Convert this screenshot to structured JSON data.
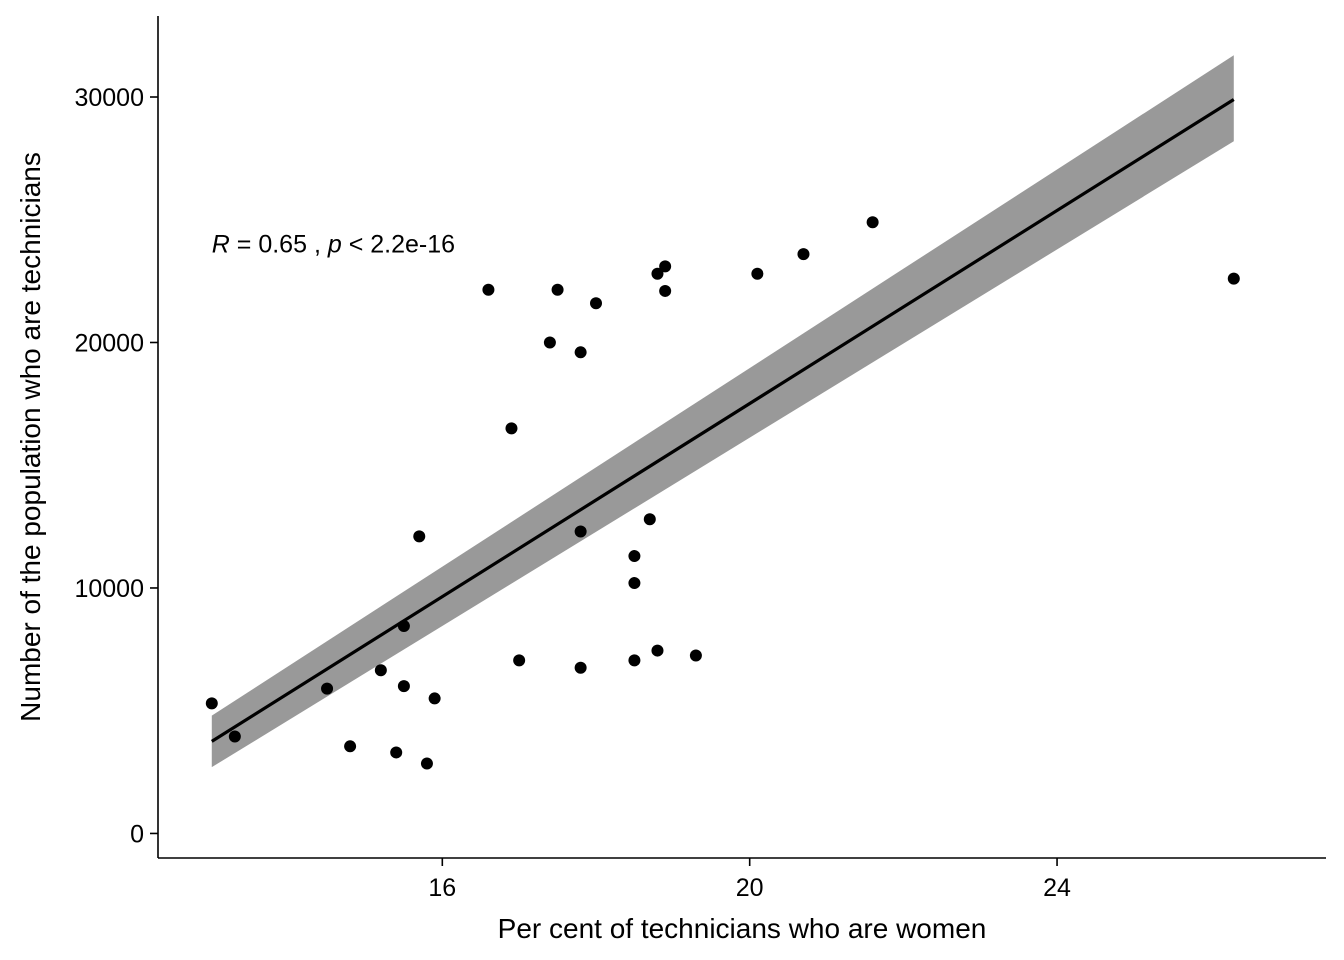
{
  "chart_data": {
    "type": "scatter",
    "title": "",
    "xlabel": "Per cent of technicians who are women",
    "ylabel": "Number of the population who are technicians",
    "xlim": [
      12.3,
      27.5
    ],
    "ylim": [
      -1000,
      33300
    ],
    "x_ticks": [
      16,
      20,
      24
    ],
    "y_ticks": [
      0,
      10000,
      20000,
      30000
    ],
    "x_tick_labels": [
      "16",
      "20",
      "24"
    ],
    "y_tick_labels": [
      "0",
      "10000",
      "20000",
      "30000"
    ],
    "grid": false,
    "legend": "none",
    "points": [
      {
        "x": 13.0,
        "y": 5300
      },
      {
        "x": 13.3,
        "y": 3950
      },
      {
        "x": 14.5,
        "y": 5900
      },
      {
        "x": 14.8,
        "y": 3550
      },
      {
        "x": 15.2,
        "y": 6650
      },
      {
        "x": 15.4,
        "y": 3300
      },
      {
        "x": 15.5,
        "y": 8450
      },
      {
        "x": 15.5,
        "y": 6000
      },
      {
        "x": 15.7,
        "y": 12100
      },
      {
        "x": 15.8,
        "y": 2850
      },
      {
        "x": 15.9,
        "y": 5500
      },
      {
        "x": 16.6,
        "y": 22150
      },
      {
        "x": 16.9,
        "y": 16500
      },
      {
        "x": 17.0,
        "y": 7050
      },
      {
        "x": 17.4,
        "y": 20000
      },
      {
        "x": 17.5,
        "y": 22150
      },
      {
        "x": 17.8,
        "y": 19600
      },
      {
        "x": 17.8,
        "y": 12300
      },
      {
        "x": 17.8,
        "y": 6750
      },
      {
        "x": 18.0,
        "y": 21600
      },
      {
        "x": 18.5,
        "y": 11300
      },
      {
        "x": 18.5,
        "y": 10200
      },
      {
        "x": 18.5,
        "y": 7050
      },
      {
        "x": 18.7,
        "y": 12800
      },
      {
        "x": 18.8,
        "y": 22800
      },
      {
        "x": 18.8,
        "y": 7450
      },
      {
        "x": 18.9,
        "y": 23100
      },
      {
        "x": 18.9,
        "y": 22100
      },
      {
        "x": 19.3,
        "y": 7250
      },
      {
        "x": 20.1,
        "y": 22800
      },
      {
        "x": 20.7,
        "y": 23600
      },
      {
        "x": 21.6,
        "y": 24900
      },
      {
        "x": 26.3,
        "y": 22600
      }
    ],
    "fit_line": {
      "x": [
        13.0,
        26.3
      ],
      "y": [
        3750,
        29900
      ],
      "ci_lower": [
        2700,
        28200
      ],
      "ci_upper": [
        4800,
        31700
      ]
    },
    "annotation": {
      "r_symbol": "R",
      "r_text": " = 0.65 , ",
      "p_symbol": "p",
      "p_text": " < 2.2e-16",
      "x": 13.0,
      "y": 24000
    },
    "colors": {
      "points": "#000000",
      "line": "#000000",
      "ribbon": "#999999",
      "axis": "#000000"
    }
  }
}
